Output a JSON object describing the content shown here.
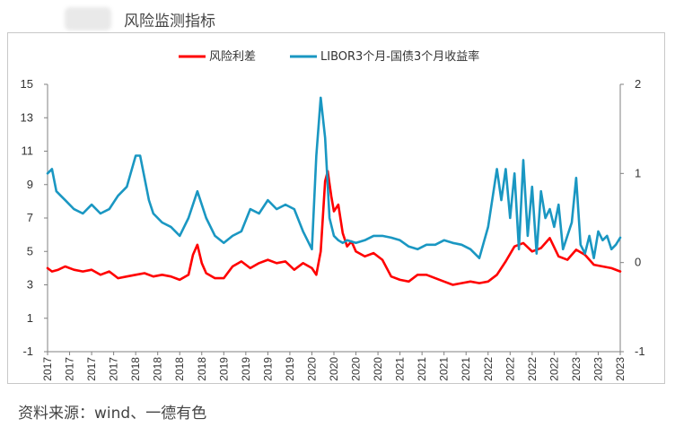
{
  "header": {
    "title": "风险监测指标"
  },
  "source": {
    "text": "资料来源：wind、一德有色"
  },
  "colors": {
    "series_1": "#ff0000",
    "series_2": "#1a97c2",
    "axis": "#808080",
    "text": "#333333"
  },
  "chart_data": {
    "type": "line",
    "title": "",
    "legend_position": "top-center",
    "grid": false,
    "y_left": {
      "ylim": [
        -1,
        15
      ],
      "ticks": [
        -1,
        1,
        3,
        5,
        7,
        9,
        11,
        13,
        15
      ]
    },
    "y_right": {
      "ylim": [
        -1,
        2
      ],
      "ticks": [
        -1,
        0,
        1,
        2
      ]
    },
    "x_tick_labels": [
      "2017",
      "2017",
      "2017",
      "2017",
      "2018",
      "2018",
      "2018",
      "2018",
      "2019",
      "2019",
      "2019",
      "2019",
      "2020",
      "2020",
      "2020",
      "2020",
      "2021",
      "2021",
      "2021",
      "2021",
      "2022",
      "2022",
      "2022",
      "2022",
      "2023",
      "2023",
      "2023"
    ],
    "x_range": [
      2017.0,
      2023.5
    ],
    "series": [
      {
        "name": "风险利差",
        "axis": "left",
        "color": "#ff0000",
        "x": [
          2017.0,
          2017.05,
          2017.12,
          2017.2,
          2017.3,
          2017.4,
          2017.5,
          2017.6,
          2017.7,
          2017.8,
          2017.9,
          2018.0,
          2018.1,
          2018.2,
          2018.3,
          2018.4,
          2018.5,
          2018.6,
          2018.65,
          2018.7,
          2018.75,
          2018.8,
          2018.9,
          2019.0,
          2019.1,
          2019.2,
          2019.3,
          2019.4,
          2019.5,
          2019.6,
          2019.7,
          2019.8,
          2019.9,
          2020.0,
          2020.05,
          2020.1,
          2020.15,
          2020.18,
          2020.22,
          2020.25,
          2020.3,
          2020.35,
          2020.4,
          2020.45,
          2020.5,
          2020.6,
          2020.7,
          2020.8,
          2020.9,
          2021.0,
          2021.1,
          2021.2,
          2021.3,
          2021.4,
          2021.5,
          2021.6,
          2021.7,
          2021.8,
          2021.9,
          2022.0,
          2022.1,
          2022.2,
          2022.3,
          2022.4,
          2022.5,
          2022.6,
          2022.7,
          2022.8,
          2022.9,
          2023.0,
          2023.1,
          2023.2,
          2023.3,
          2023.4,
          2023.5
        ],
        "values": [
          4.0,
          3.8,
          3.9,
          4.1,
          3.9,
          3.8,
          3.9,
          3.6,
          3.8,
          3.4,
          3.5,
          3.6,
          3.7,
          3.5,
          3.6,
          3.5,
          3.3,
          3.6,
          4.8,
          5.4,
          4.3,
          3.7,
          3.4,
          3.4,
          4.1,
          4.4,
          4.0,
          4.3,
          4.5,
          4.3,
          4.4,
          3.9,
          4.3,
          4.0,
          3.6,
          5.0,
          9.2,
          9.8,
          8.3,
          7.4,
          7.8,
          6.1,
          5.3,
          5.6,
          5.0,
          4.7,
          4.9,
          4.5,
          3.5,
          3.3,
          3.2,
          3.6,
          3.6,
          3.4,
          3.2,
          3.0,
          3.1,
          3.2,
          3.1,
          3.2,
          3.6,
          4.4,
          5.3,
          5.5,
          5.0,
          5.2,
          5.8,
          4.7,
          4.5,
          5.1,
          4.8,
          4.2,
          4.1,
          4.0,
          3.8
        ]
      },
      {
        "name": "LIBOR3个月-国债3个月收益率",
        "axis": "right",
        "color": "#1a97c2",
        "x": [
          2017.0,
          2017.05,
          2017.1,
          2017.15,
          2017.2,
          2017.3,
          2017.4,
          2017.5,
          2017.6,
          2017.7,
          2017.8,
          2017.9,
          2018.0,
          2018.05,
          2018.1,
          2018.15,
          2018.2,
          2018.3,
          2018.4,
          2018.5,
          2018.6,
          2018.7,
          2018.8,
          2018.9,
          2019.0,
          2019.1,
          2019.2,
          2019.3,
          2019.4,
          2019.5,
          2019.6,
          2019.7,
          2019.8,
          2019.9,
          2020.0,
          2020.05,
          2020.1,
          2020.15,
          2020.2,
          2020.25,
          2020.3,
          2020.35,
          2020.4,
          2020.5,
          2020.6,
          2020.7,
          2020.8,
          2020.9,
          2021.0,
          2021.1,
          2021.2,
          2021.3,
          2021.4,
          2021.5,
          2021.6,
          2021.7,
          2021.8,
          2021.9,
          2022.0,
          2022.1,
          2022.15,
          2022.2,
          2022.25,
          2022.3,
          2022.35,
          2022.4,
          2022.45,
          2022.5,
          2022.55,
          2022.6,
          2022.65,
          2022.7,
          2022.75,
          2022.8,
          2022.85,
          2022.9,
          2022.95,
          2023.0,
          2023.05,
          2023.1,
          2023.15,
          2023.2,
          2023.25,
          2023.3,
          2023.35,
          2023.4,
          2023.45,
          2023.5
        ],
        "values": [
          1.0,
          1.05,
          0.8,
          0.75,
          0.7,
          0.6,
          0.55,
          0.65,
          0.55,
          0.6,
          0.75,
          0.85,
          1.2,
          1.2,
          0.95,
          0.7,
          0.55,
          0.45,
          0.4,
          0.3,
          0.5,
          0.8,
          0.5,
          0.3,
          0.22,
          0.3,
          0.35,
          0.6,
          0.55,
          0.7,
          0.6,
          0.65,
          0.6,
          0.35,
          0.15,
          1.2,
          1.85,
          1.4,
          0.5,
          0.3,
          0.25,
          0.22,
          0.25,
          0.22,
          0.25,
          0.3,
          0.3,
          0.28,
          0.25,
          0.18,
          0.15,
          0.2,
          0.2,
          0.25,
          0.22,
          0.2,
          0.15,
          0.05,
          0.4,
          1.05,
          0.7,
          1.05,
          0.5,
          1.0,
          0.15,
          1.15,
          0.3,
          0.85,
          0.1,
          0.8,
          0.5,
          0.6,
          0.4,
          0.65,
          0.15,
          0.3,
          0.45,
          0.95,
          0.2,
          0.1,
          0.3,
          0.05,
          0.35,
          0.25,
          0.3,
          0.15,
          0.2,
          0.28
        ]
      }
    ]
  }
}
